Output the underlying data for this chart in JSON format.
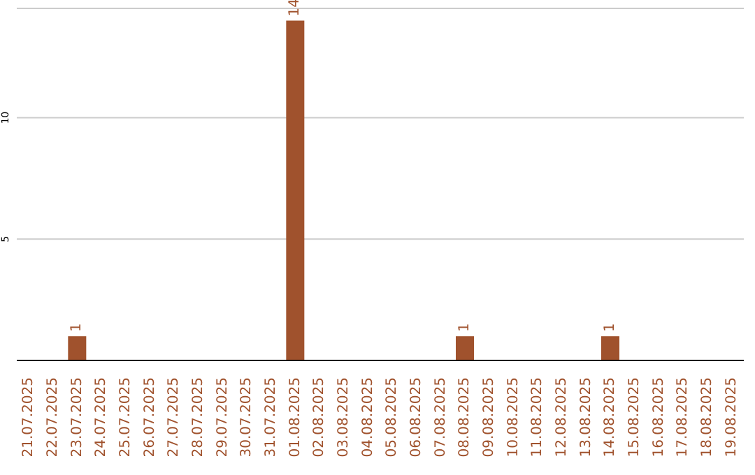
{
  "chart_data": {
    "type": "bar",
    "categories": [
      "21.07.2025",
      "22.07.2025",
      "23.07.2025",
      "24.07.2025",
      "25.07.2025",
      "26.07.2025",
      "27.07.2025",
      "28.07.2025",
      "29.07.2025",
      "30.07.2025",
      "31.07.2025",
      "01.08.2025",
      "02.08.2025",
      "03.08.2025",
      "04.08.2025",
      "05.08.2025",
      "06.08.2025",
      "07.08.2025",
      "08.08.2025",
      "09.08.2025",
      "10.08.2025",
      "11.08.2025",
      "12.08.2025",
      "13.08.2025",
      "14.08.2025",
      "15.08.2025",
      "16.08.2025",
      "17.08.2025",
      "18.08.2025",
      "19.08.2025"
    ],
    "values": [
      0,
      0,
      1,
      0,
      0,
      0,
      0,
      0,
      0,
      0,
      0,
      14,
      0,
      0,
      0,
      0,
      0,
      0,
      1,
      0,
      0,
      0,
      0,
      0,
      1,
      0,
      0,
      0,
      0,
      0
    ],
    "value_labels": [
      null,
      null,
      "1",
      null,
      null,
      null,
      null,
      null,
      null,
      null,
      null,
      "14",
      null,
      null,
      null,
      null,
      null,
      null,
      "1",
      null,
      null,
      null,
      null,
      null,
      "1",
      null,
      null,
      null,
      null,
      null
    ],
    "color": "#a0522d",
    "ylim": [
      0,
      14.5
    ],
    "yticks": [
      5,
      10
    ],
    "grid": "y"
  }
}
